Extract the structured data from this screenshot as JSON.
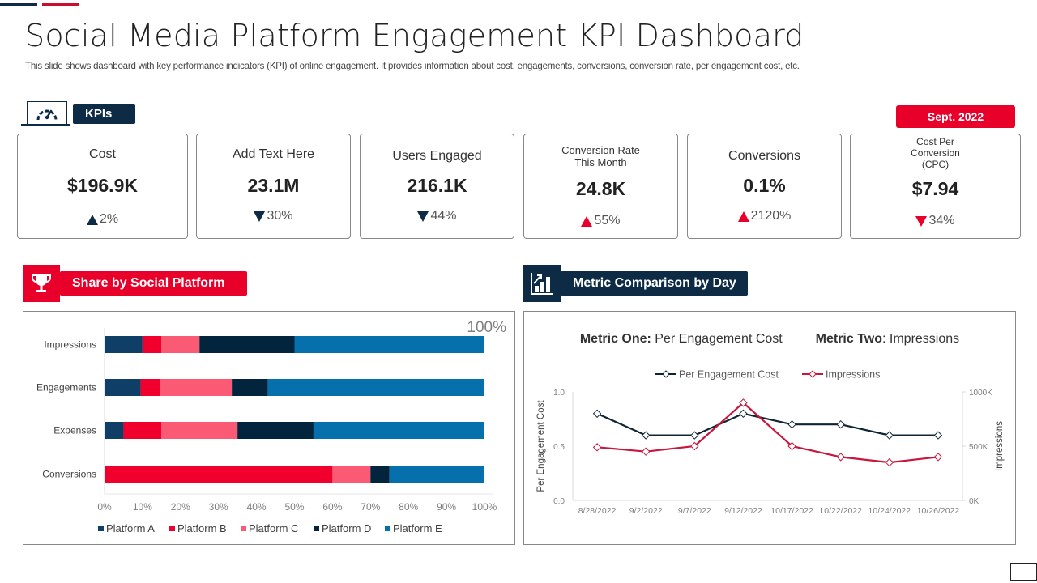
{
  "header": {
    "title": "Social Media Platform Engagement KPI Dashboard",
    "subtitle": "This slide shows dashboard with key performance indicators (KPI) of online engagement. It provides information about cost, engagements, conversions, conversion rate, per engagement cost, etc."
  },
  "kpi_section": {
    "icon": "speedometer-icon",
    "label": "KPIs",
    "date_badge": "Sept. 2022"
  },
  "colors": {
    "navy": "#0d2b45",
    "red": "#e8002a",
    "platform_a": "#0f3f66",
    "platform_b": "#f2002d",
    "platform_c": "#fb5a75",
    "platform_d": "#03243d",
    "platform_e": "#0670ac",
    "line_one": "#0f2533",
    "line_two": "#c8173c"
  },
  "kpis": [
    {
      "name": "Cost",
      "value": "$196.9K",
      "delta": "2%",
      "direction": "up",
      "color": "#0d2b45"
    },
    {
      "name": "Add Text Here",
      "value": "23.1M",
      "delta": "30%",
      "direction": "down",
      "color": "#0d2b45"
    },
    {
      "name": "Users Engaged",
      "value": "216.1K",
      "delta": "44%",
      "direction": "down",
      "color": "#0d2b45"
    },
    {
      "name": "Conversion Rate\nThis Month",
      "value": "24.8K",
      "delta": "55%",
      "direction": "up",
      "color": "#e8002a"
    },
    {
      "name": "Conversions",
      "value": "0.1%",
      "delta": "2120%",
      "direction": "up",
      "color": "#e8002a"
    },
    {
      "name": "Cost Per\nConversion\n(CPC)",
      "value": "$7.94",
      "delta": "34%",
      "direction": "down",
      "color": "#e8002a"
    }
  ],
  "share_section": {
    "icon": "trophy-icon",
    "label": "Share by Social Platform"
  },
  "metric_section": {
    "icon": "bar-chart-growth-icon",
    "label": "Metric Comparison by Day",
    "metric_one_label": "Metric One:",
    "metric_one_value": " Per Engagement Cost",
    "metric_two_label": "Metric Two",
    "metric_two_value": ": Impressions"
  },
  "chart_data": [
    {
      "type": "bar",
      "orientation": "horizontal",
      "stacked": "percent",
      "title": "Share by Social Platform",
      "annotation": "100%",
      "categories": [
        "Impressions",
        "Engagements",
        "Expenses",
        "Conversions"
      ],
      "series": [
        {
          "name": "Platform A",
          "values": [
            10,
            9.5,
            5,
            0
          ]
        },
        {
          "name": "Platform B",
          "values": [
            5,
            5,
            10,
            60
          ]
        },
        {
          "name": "Platform C",
          "values": [
            10,
            19,
            20,
            10
          ]
        },
        {
          "name": "Platform D",
          "values": [
            25,
            9.5,
            20,
            5
          ]
        },
        {
          "name": "Platform E",
          "values": [
            50,
            57,
            45,
            25
          ]
        }
      ],
      "xticks": [
        "0%",
        "10%",
        "20%",
        "30%",
        "40%",
        "50%",
        "60%",
        "70%",
        "80%",
        "90%",
        "100%"
      ],
      "xlim": [
        0,
        100
      ],
      "legend": "bottom",
      "grid": false
    },
    {
      "type": "line",
      "title": "",
      "x": [
        "8/28/2022",
        "9/2/2022",
        "9/7/2022",
        "9/12/2022",
        "10/17/2022",
        "10/22/2022",
        "10/24/2022",
        "10/26/2022"
      ],
      "series": [
        {
          "name": "Per Engagement Cost",
          "axis": "left",
          "values": [
            0.8,
            0.6,
            0.6,
            0.8,
            0.7,
            0.7,
            0.6,
            0.6
          ]
        },
        {
          "name": "Impressions",
          "axis": "right",
          "values": [
            490000,
            450000,
            500000,
            900000,
            500000,
            400000,
            350000,
            400000
          ]
        }
      ],
      "ylabel": "Per Engagement Cost",
      "ylim": [
        0,
        1
      ],
      "yticks": [
        "0.0",
        "0.5",
        "1.0"
      ],
      "y2label": "Impressions",
      "y2lim": [
        0,
        1000000
      ],
      "y2ticks": [
        "0K",
        "500K",
        "1000K"
      ],
      "legend": "top",
      "grid": false
    }
  ]
}
